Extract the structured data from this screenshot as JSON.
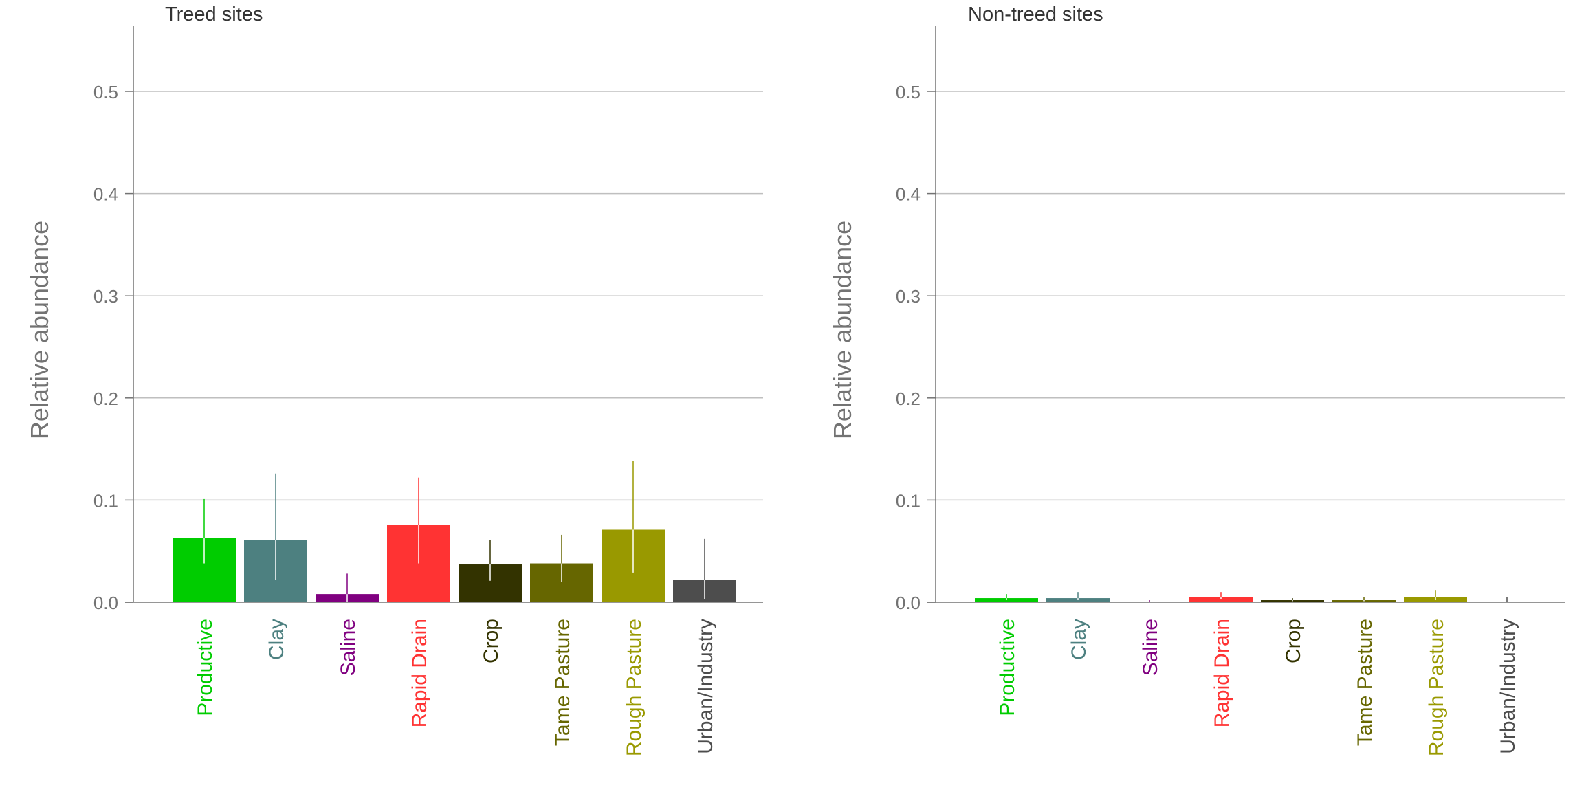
{
  "chart_data": [
    {
      "type": "bar",
      "title": "Treed sites",
      "ylabel": "Relative abundance",
      "xlabel": "",
      "ylim": [
        0,
        0.56
      ],
      "yticks": [
        "0.0",
        "0.1",
        "0.2",
        "0.3",
        "0.4",
        "0.5"
      ],
      "grid": true,
      "categories": [
        "Productive",
        "Clay",
        "Saline",
        "Rapid Drain",
        "Crop",
        "Tame Pasture",
        "Rough Pasture",
        "Urban/Industry"
      ],
      "colors": [
        "#00cc00",
        "#4d8080",
        "#800080",
        "#ff3333",
        "#333300",
        "#666600",
        "#999900",
        "#4d4d4d"
      ],
      "values": [
        0.063,
        0.061,
        0.008,
        0.076,
        0.037,
        0.038,
        0.071,
        0.022
      ],
      "error_low": [
        0.038,
        0.022,
        0.0,
        0.038,
        0.021,
        0.02,
        0.029,
        0.003
      ],
      "error_high": [
        0.101,
        0.126,
        0.028,
        0.122,
        0.061,
        0.066,
        0.138,
        0.062
      ]
    },
    {
      "type": "bar",
      "title": "Non-treed sites",
      "ylabel": "Relative abundance",
      "xlabel": "",
      "ylim": [
        0,
        0.56
      ],
      "yticks": [
        "0.0",
        "0.1",
        "0.2",
        "0.3",
        "0.4",
        "0.5"
      ],
      "grid": true,
      "categories": [
        "Productive",
        "Clay",
        "Saline",
        "Rapid Drain",
        "Crop",
        "Tame Pasture",
        "Rough Pasture",
        "Urban/Industry"
      ],
      "colors": [
        "#00cc00",
        "#4d8080",
        "#800080",
        "#ff3333",
        "#333300",
        "#666600",
        "#999900",
        "#4d4d4d"
      ],
      "values": [
        0.004,
        0.004,
        0.0,
        0.005,
        0.002,
        0.002,
        0.005,
        0.0
      ],
      "error_low": [
        0.002,
        0.002,
        0.0,
        0.003,
        0.001,
        0.001,
        0.002,
        0.0
      ],
      "error_high": [
        0.008,
        0.01,
        0.002,
        0.01,
        0.004,
        0.005,
        0.012,
        0.005
      ]
    }
  ]
}
